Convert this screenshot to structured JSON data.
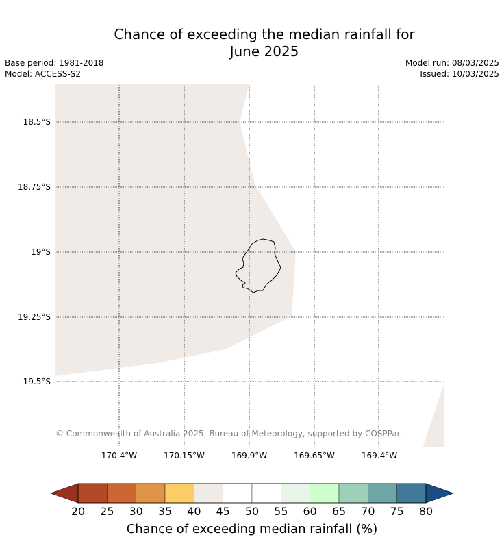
{
  "title_line1": "Chance of exceeding the median rainfall for",
  "title_line2": "June 2025",
  "base_period": "Base period: 1981-2018",
  "model": "Model: ACCESS-S2",
  "model_run": "Model run: 08/03/2025",
  "issued": "Issued: 10/03/2025",
  "copyright": "© Commonwealth of Australia 2025, Bureau of Meteorology, supported by COSPPac",
  "lat_labels": [
    "18.5°S",
    "18.75°S",
    "19°S",
    "19.25°S",
    "19.5°S"
  ],
  "lon_labels": [
    "170.4°W",
    "170.15°W",
    "169.9°W",
    "169.65°W",
    "169.4°W"
  ],
  "colorbar": {
    "title": "Chance of exceeding median rainfall (%)",
    "ticks": [
      "20",
      "25",
      "30",
      "35",
      "40",
      "45",
      "50",
      "55",
      "60",
      "65",
      "70",
      "75",
      "80"
    ],
    "colors": [
      "#b34a27",
      "#cc6633",
      "#e09448",
      "#fccc66",
      "#f0ebe6",
      "#ffffff",
      "#ffffff",
      "#e8f5e8",
      "#ccffcc",
      "#9ecfb8",
      "#6fa6a6",
      "#417a99"
    ],
    "under_color": "#9a3220",
    "over_color": "#1a4f86"
  },
  "map_colors": {
    "probability_fill": "#f0ebe6",
    "ocean": "#ffffff"
  }
}
